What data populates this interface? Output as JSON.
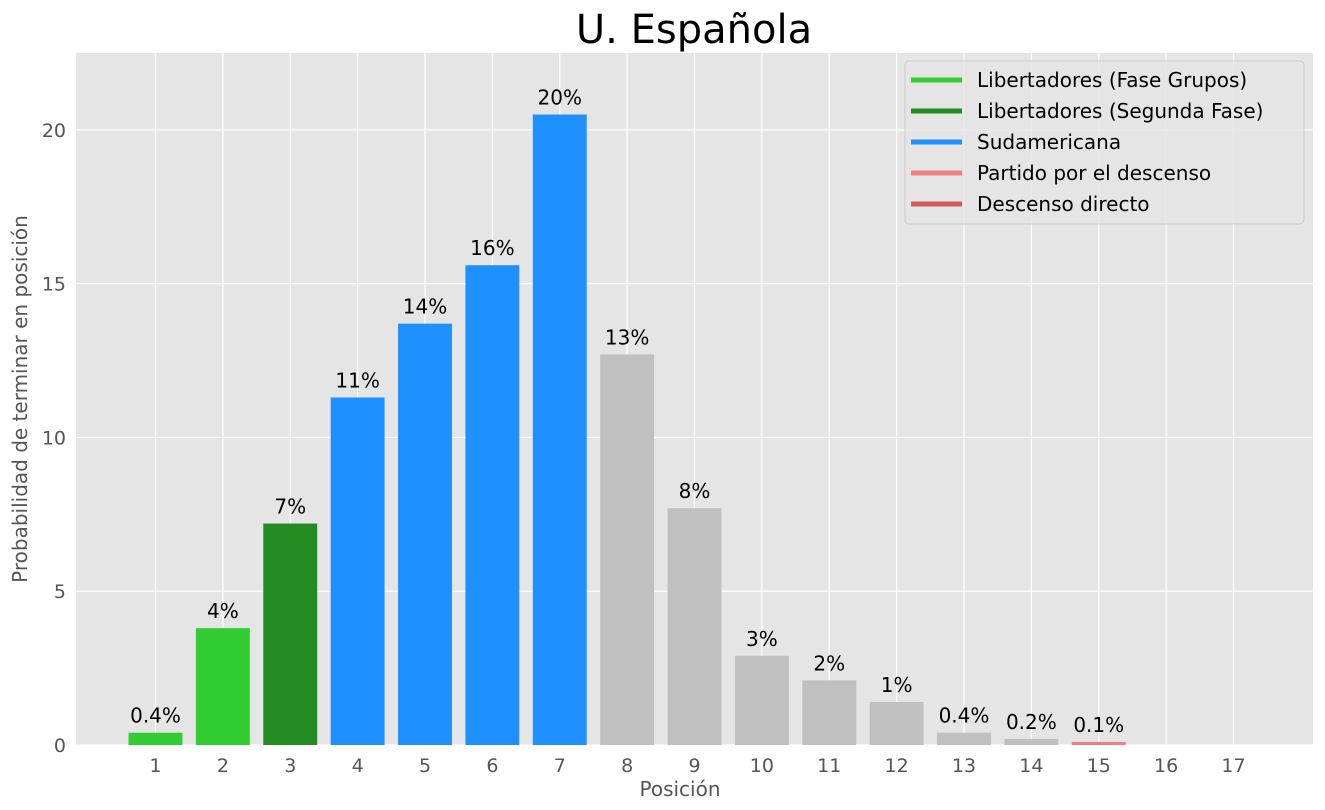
{
  "chart_data": {
    "type": "bar",
    "title": "U. Española",
    "xlabel": "Posición",
    "ylabel": "Probabilidad de terminar en posición",
    "categories": [
      "1",
      "2",
      "3",
      "4",
      "5",
      "6",
      "7",
      "8",
      "9",
      "10",
      "11",
      "12",
      "13",
      "14",
      "15",
      "16",
      "17"
    ],
    "values": [
      0.4,
      3.8,
      7.2,
      11.3,
      13.7,
      15.6,
      20.5,
      12.7,
      7.7,
      2.9,
      2.1,
      1.4,
      0.4,
      0.2,
      0.1,
      0,
      0
    ],
    "data_labels": [
      "0.4%",
      "4%",
      "7%",
      "11%",
      "14%",
      "16%",
      "20%",
      "13%",
      "8%",
      "3%",
      "2%",
      "1%",
      "0.4%",
      "0.2%",
      "0.1%",
      "",
      ""
    ],
    "bar_colors": [
      "#32cd32",
      "#32cd32",
      "#228b22",
      "#1e90ff",
      "#1e90ff",
      "#1e90ff",
      "#1e90ff",
      "#c0c0c0",
      "#c0c0c0",
      "#c0c0c0",
      "#c0c0c0",
      "#c0c0c0",
      "#c0c0c0",
      "#c0c0c0",
      "#f08080",
      "#c0c0c0",
      "#c0c0c0"
    ],
    "ylim": [
      0,
      22.5
    ],
    "yticks": [
      0,
      5,
      10,
      15,
      20
    ],
    "grid": true,
    "legend_position": "top-right",
    "legend": [
      {
        "label": "Libertadores (Fase Grupos)",
        "color": "#32cd32"
      },
      {
        "label": "Libertadores (Segunda Fase)",
        "color": "#228b22"
      },
      {
        "label": "Sudamericana",
        "color": "#1e90ff"
      },
      {
        "label": "Partido por el descenso",
        "color": "#f08080"
      },
      {
        "label": "Descenso directo",
        "color": "#cd5c5c"
      }
    ],
    "colors": {
      "plot_background": "#e5e5e5",
      "grid": "#ffffff",
      "legend_background": "#e5e5e5",
      "legend_border": "#cccccc"
    }
  }
}
